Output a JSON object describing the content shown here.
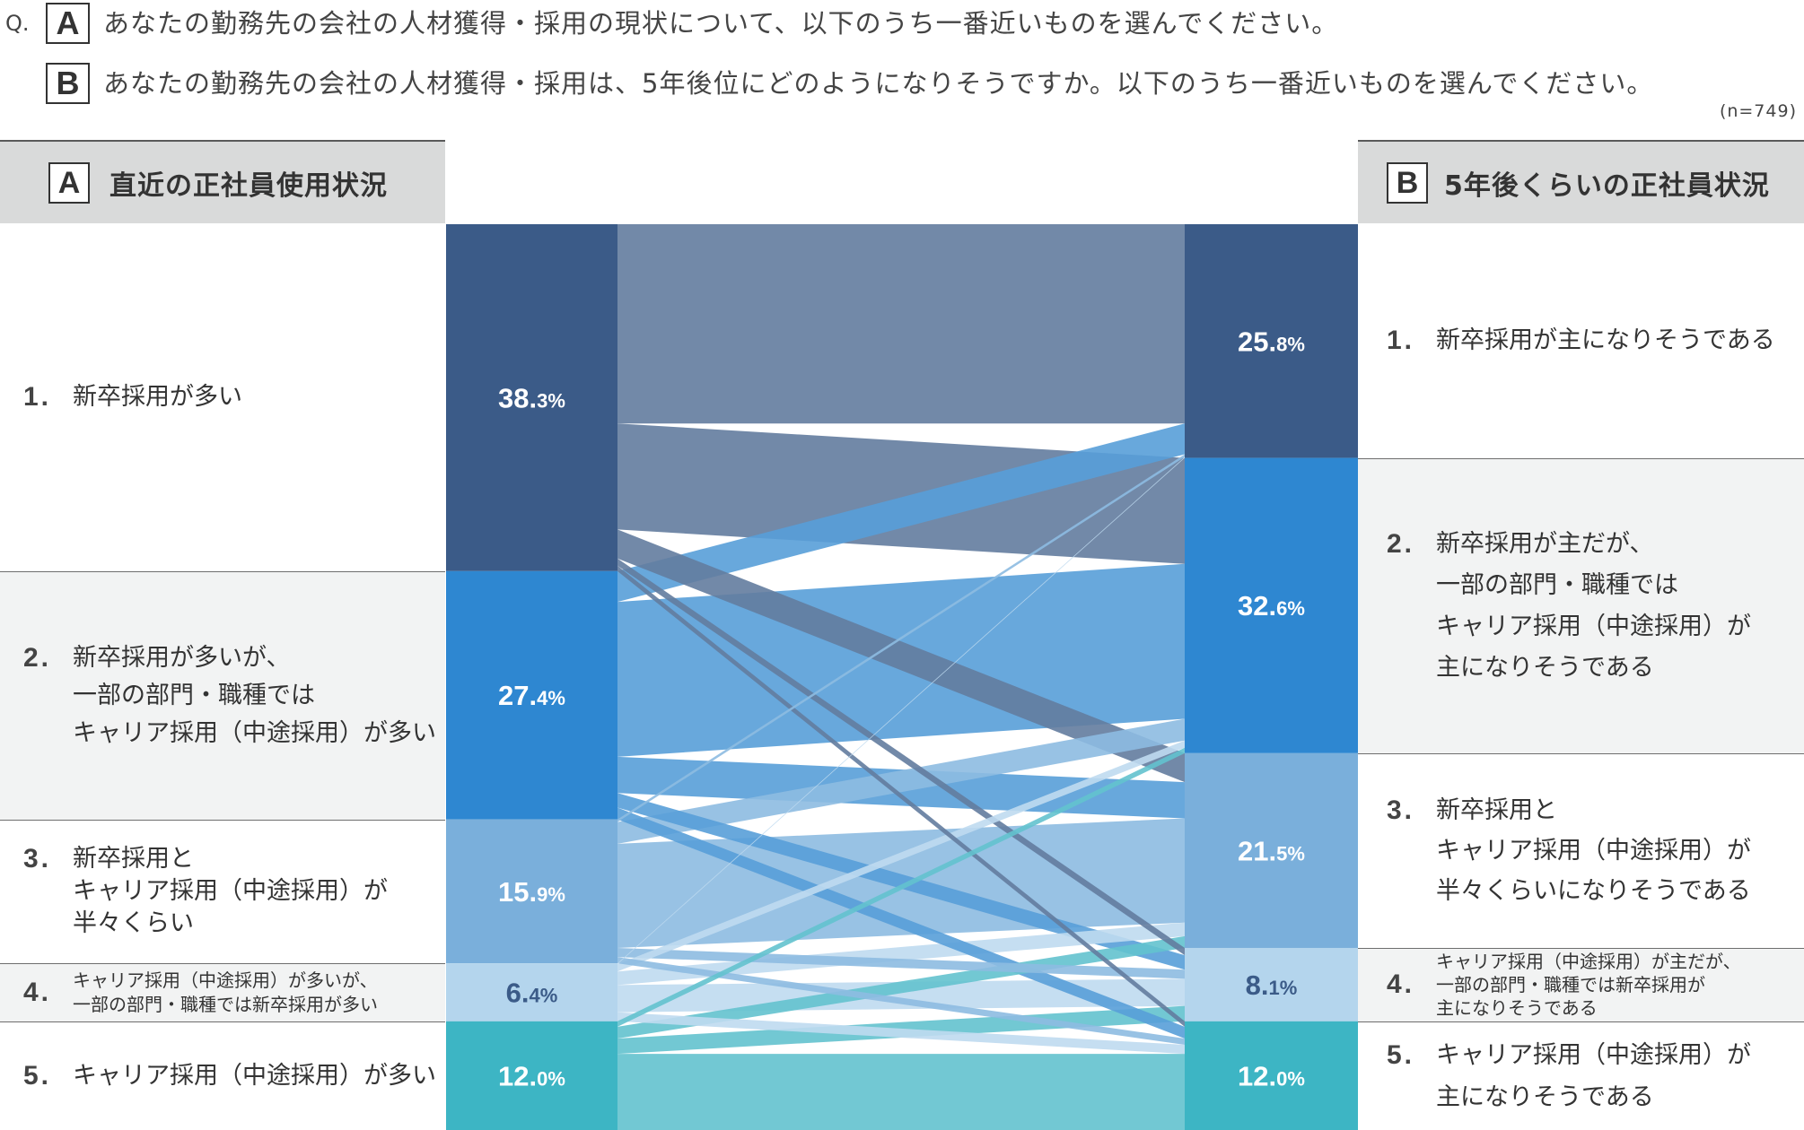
{
  "question": {
    "prefix": "Q.",
    "badge_a": "A",
    "text_a": "あなたの勤務先の会社の人材獲得・採用の現状について、以下のうち一番近いものを選んでください。",
    "badge_b": "B",
    "text_b": "あなたの勤務先の会社の人材獲得・採用は、5年後位にどのようになりそうですか。以下のうち一番近いものを選んでください。",
    "sample_size": "(n=749)"
  },
  "left_header": {
    "title": "直近の正社員使用状況"
  },
  "right_header": {
    "title": "5年後くらいの正社員状況"
  },
  "left_rows": [
    {
      "num": "1.",
      "lines": [
        "新卒採用が多い"
      ]
    },
    {
      "num": "2.",
      "lines": [
        "新卒採用が多いが、",
        "一部の部門・職種では",
        "キャリア採用（中途採用）が多い"
      ]
    },
    {
      "num": "3.",
      "lines": [
        "新卒採用と",
        "キャリア採用（中途採用）が",
        "半々くらい"
      ]
    },
    {
      "num": "4.",
      "lines": [
        "キャリア採用（中途採用）が多いが、",
        "一部の部門・職種では新卒採用が多い"
      ]
    },
    {
      "num": "5.",
      "lines": [
        "キャリア採用（中途採用）が多い"
      ]
    }
  ],
  "right_rows": [
    {
      "num": "1.",
      "lines": [
        "新卒採用が主になりそうである"
      ]
    },
    {
      "num": "2.",
      "lines": [
        "新卒採用が主だが、",
        "一部の部門・職種では",
        "キャリア採用（中途採用）が",
        "主になりそうである"
      ]
    },
    {
      "num": "3.",
      "lines": [
        "新卒採用と",
        "キャリア採用（中途採用）が",
        "半々くらいになりそうである"
      ]
    },
    {
      "num": "4.",
      "lines": [
        "キャリア採用（中途採用）が主だが、",
        "一部の部門・職種では新卒採用が",
        "主になりそうである"
      ]
    },
    {
      "num": "5.",
      "lines": [
        "キャリア採用（中途採用）が",
        "主になりそうである"
      ]
    }
  ],
  "colors": {
    "nodes": [
      "#3b5b88",
      "#2e87d1",
      "#7aafdb",
      "#b4d5ed",
      "#3db5c4"
    ],
    "flows": [
      "#637c9f",
      "#589fd8",
      "#8dbbe1",
      "#bfdaef",
      "#63c2ce"
    ],
    "label_light": "#ffffff"
  },
  "chart_data": {
    "type": "bar",
    "stacked": true,
    "unit": "%",
    "bars": [
      {
        "name": "A",
        "values": [
          38.3,
          27.4,
          15.9,
          6.4,
          12.0
        ]
      },
      {
        "name": "B",
        "values": [
          25.8,
          32.6,
          21.5,
          8.1,
          12.0
        ]
      }
    ],
    "flows": [
      [
        22.0,
        11.7,
        3.2,
        0.8,
        0.6
      ],
      [
        3.4,
        17.1,
        4.0,
        1.6,
        1.3
      ],
      [
        0.3,
        2.4,
        11.5,
        1.0,
        0.7
      ],
      [
        0.1,
        0.8,
        1.5,
        3.0,
        1.0
      ],
      [
        0.0,
        0.6,
        1.3,
        1.7,
        8.4
      ]
    ]
  }
}
